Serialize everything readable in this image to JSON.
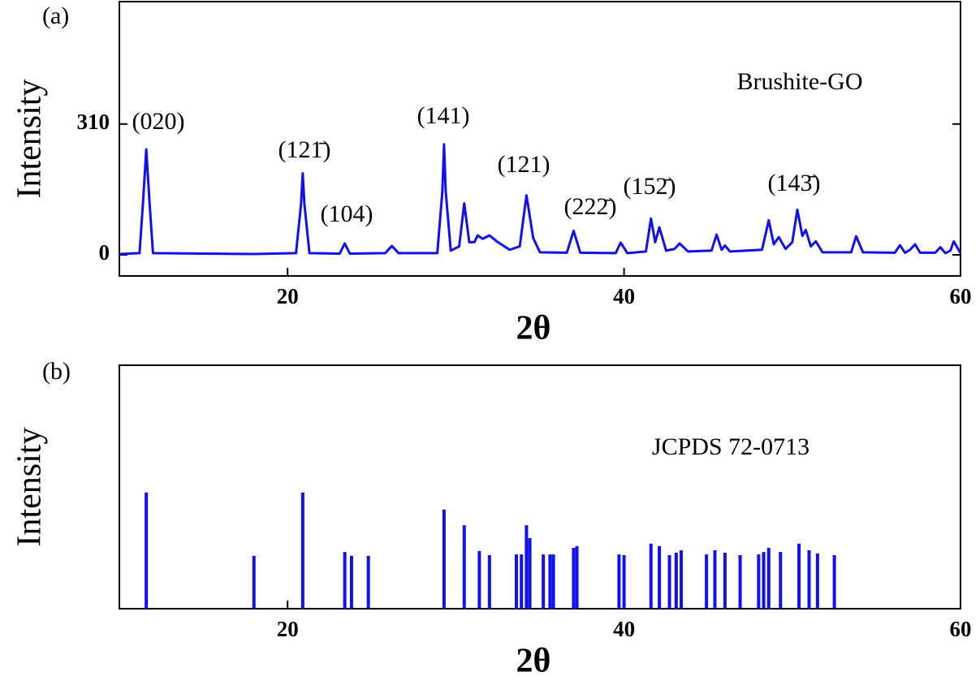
{
  "chart_data": [
    {
      "type": "line",
      "panel_label": "(a)",
      "x_label": "2θ",
      "y_label": "Intensity",
      "x": [
        10,
        11.2,
        11.4,
        11.6,
        11.8,
        12.0,
        18,
        20.5,
        20.8,
        20.9,
        21.0,
        21.3,
        23.1,
        23.4,
        23.7,
        25.8,
        26.2,
        26.6,
        28.9,
        29.2,
        29.3,
        29.4,
        29.7,
        30.2,
        30.5,
        30.8,
        31.1,
        31.3,
        31.6,
        32.0,
        32.5,
        33.2,
        33.5,
        33.8,
        34.2,
        34.6,
        35.0,
        36.6,
        37.0,
        37.4,
        39.5,
        39.8,
        40.2,
        41.3,
        41.6,
        41.85,
        42.1,
        42.5,
        43.0,
        43.3,
        43.8,
        45.2,
        45.5,
        45.8,
        46.0,
        46.3,
        48.2,
        48.6,
        48.9,
        49.2,
        49.6,
        50.0,
        50.3,
        50.6,
        50.8,
        51.1,
        51.4,
        51.8,
        53.5,
        53.8,
        54.2,
        56.1,
        56.4,
        56.7,
        57.0,
        57.3,
        57.6,
        58.5,
        58.8,
        59.1,
        59.4,
        59.6,
        60
      ],
      "series": [
        {
          "name": "Brushite-GO",
          "color": "#1010f0",
          "values": [
            2,
            4,
            120,
            250,
            120,
            4,
            2,
            4,
            120,
            193,
            120,
            4,
            3,
            27,
            3,
            4,
            21,
            4,
            4,
            150,
            262,
            150,
            10,
            20,
            122,
            30,
            30,
            46,
            38,
            46,
            30,
            12,
            16,
            20,
            141,
            40,
            6,
            5,
            57,
            5,
            4,
            29,
            4,
            8,
            86,
            30,
            65,
            10,
            14,
            27,
            8,
            10,
            48,
            12,
            22,
            8,
            12,
            82,
            25,
            42,
            14,
            30,
            107,
            45,
            59,
            20,
            32,
            6,
            6,
            44,
            6,
            5,
            23,
            5,
            12,
            25,
            5,
            5,
            18,
            4,
            10,
            32,
            4
          ]
        }
      ],
      "xlim": [
        10,
        60
      ],
      "xticks": [
        20,
        40,
        60
      ],
      "ylim": [
        -50,
        600
      ],
      "yticks": [
        0,
        310
      ],
      "annotations": [
        "(020)",
        "(121̄)",
        "(104)",
        "(141)",
        "(121)",
        "(222̄)",
        "(152̄)",
        "(143̄)"
      ]
    },
    {
      "type": "stem",
      "panel_label": "(b)",
      "x_label": "2θ",
      "y_label": "Intensity",
      "x": [
        11.6,
        18.0,
        20.9,
        23.4,
        23.8,
        24.8,
        29.3,
        30.5,
        31.4,
        32.0,
        33.6,
        33.9,
        34.2,
        34.4,
        35.2,
        35.6,
        35.8,
        37.0,
        37.2,
        39.7,
        40.0,
        41.6,
        42.1,
        42.7,
        43.1,
        43.4,
        44.9,
        45.4,
        46.0,
        46.9,
        48.0,
        48.3,
        48.6,
        49.3,
        50.4,
        51.0,
        51.5,
        52.5
      ],
      "series": [
        {
          "name": "JCPDS 72-0713",
          "color": "#1010f0",
          "values": [
            47.7,
            21.7,
            47.7,
            23.3,
            21.7,
            21.7,
            40.7,
            34.3,
            23.7,
            22,
            22.3,
            22.3,
            34.3,
            29,
            22.3,
            22.3,
            22.3,
            25,
            25.7,
            22.3,
            22,
            26.7,
            25.7,
            22,
            23,
            24,
            22.3,
            24,
            23,
            22,
            22.3,
            23.3,
            25,
            23.3,
            26.7,
            24,
            22.7,
            22
          ]
        }
      ],
      "xlim": [
        10,
        60
      ],
      "xticks": [
        20,
        40,
        60
      ],
      "ylim": [
        0,
        100
      ]
    }
  ]
}
